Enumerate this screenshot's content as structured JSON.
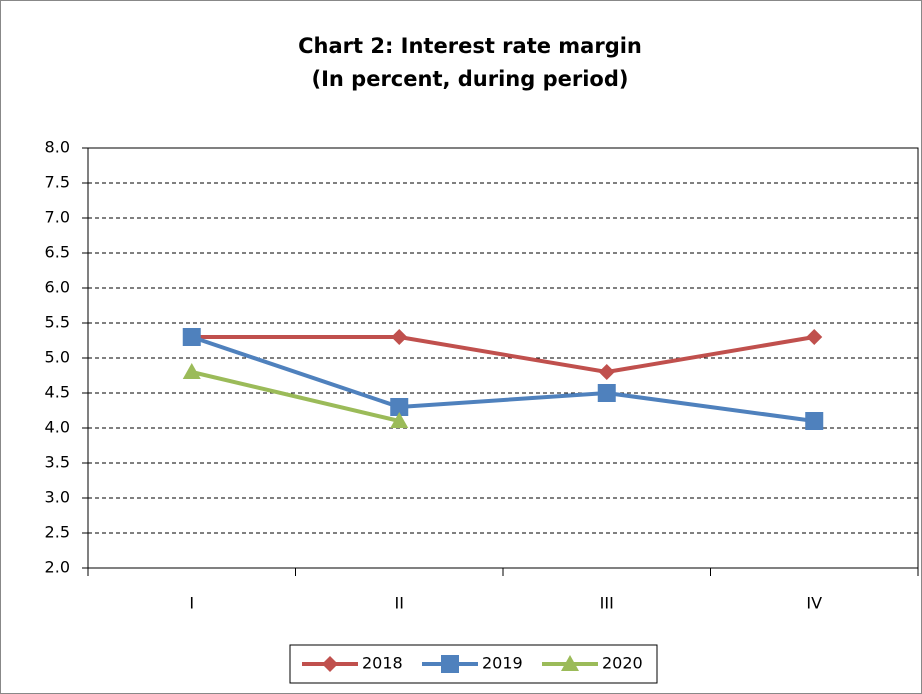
{
  "chart_data": {
    "type": "line",
    "title": "Chart 2: Interest rate margin",
    "subtitle": "(In percent, during period)",
    "categories": [
      "I",
      "II",
      "III",
      "IV"
    ],
    "series": [
      {
        "name": "2018",
        "color": "#c0504d",
        "marker": "diamond",
        "values": [
          5.3,
          5.3,
          4.8,
          5.3
        ]
      },
      {
        "name": "2019",
        "color": "#4f81bd",
        "marker": "square",
        "values": [
          5.3,
          4.3,
          4.5,
          4.1
        ]
      },
      {
        "name": "2020",
        "color": "#9bbb59",
        "marker": "triangle",
        "values": [
          4.8,
          4.1,
          null,
          null
        ]
      }
    ],
    "ylim": [
      2,
      8
    ],
    "yticks": [
      {
        "value": 2,
        "label": "2.0"
      },
      {
        "value": 2.5,
        "label": "2.5"
      },
      {
        "value": 3,
        "label": "3.0"
      },
      {
        "value": 3.5,
        "label": "3.5"
      },
      {
        "value": 4,
        "label": "4.0"
      },
      {
        "value": 4.5,
        "label": "4.5"
      },
      {
        "value": 5,
        "label": "5.0"
      },
      {
        "value": 5.5,
        "label": "5.5"
      },
      {
        "value": 6,
        "label": "6.0"
      },
      {
        "value": 6.5,
        "label": "6.5"
      },
      {
        "value": 7,
        "label": "7.0"
      },
      {
        "value": 7.5,
        "label": "7.5"
      },
      {
        "value": 8,
        "label": "8.0"
      }
    ],
    "grid": true,
    "legend": "bottom"
  }
}
